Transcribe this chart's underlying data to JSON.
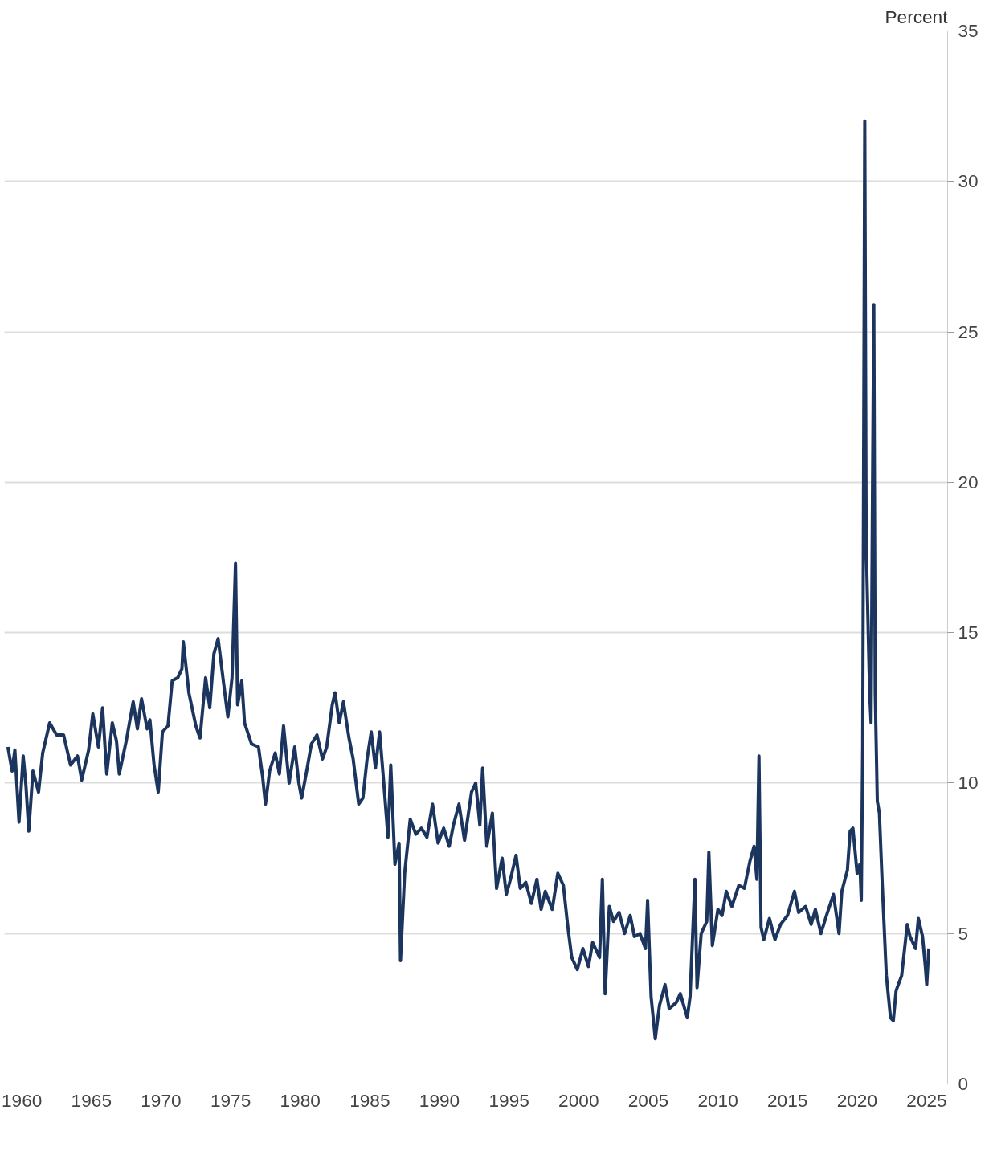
{
  "chart_data": {
    "type": "line",
    "ylabel": "Percent",
    "xlim": [
      1958.75,
      2026.5
    ],
    "ylim": [
      0,
      35
    ],
    "xticks": [
      1960,
      1965,
      1970,
      1975,
      1980,
      1985,
      1990,
      1995,
      2000,
      2005,
      2010,
      2015,
      2020,
      2025
    ],
    "yticks": [
      0,
      5,
      10,
      15,
      20,
      25,
      30,
      35
    ],
    "grid": "y",
    "x": [
      1959.0,
      1959.3,
      1959.5,
      1959.8,
      1960.1,
      1960.3,
      1960.5,
      1960.8,
      1961.2,
      1961.5,
      1962.0,
      1962.5,
      1963.0,
      1963.5,
      1964.0,
      1964.3,
      1964.8,
      1965.1,
      1965.5,
      1965.8,
      1966.1,
      1966.5,
      1966.8,
      1967.0,
      1967.5,
      1968.0,
      1968.3,
      1968.6,
      1969.0,
      1969.2,
      1969.5,
      1969.8,
      1970.1,
      1970.5,
      1970.8,
      1971.2,
      1971.5,
      1971.6,
      1972.0,
      1972.5,
      1972.8,
      1973.2,
      1973.5,
      1973.8,
      1974.1,
      1974.5,
      1974.8,
      1975.1,
      1975.35,
      1975.5,
      1975.8,
      1976.0,
      1976.5,
      1977.0,
      1977.3,
      1977.5,
      1977.8,
      1978.2,
      1978.5,
      1978.8,
      1979.2,
      1979.6,
      1979.9,
      1980.1,
      1980.5,
      1980.8,
      1981.2,
      1981.6,
      1981.9,
      1982.3,
      1982.5,
      1982.8,
      1983.1,
      1983.5,
      1983.8,
      1984.2,
      1984.5,
      1984.8,
      1985.1,
      1985.4,
      1985.7,
      1986.0,
      1986.3,
      1986.5,
      1986.8,
      1987.1,
      1987.2,
      1987.5,
      1987.9,
      1988.3,
      1988.7,
      1989.1,
      1989.5,
      1989.9,
      1990.3,
      1990.7,
      1991.0,
      1991.4,
      1991.8,
      1992.3,
      1992.6,
      1992.9,
      1993.1,
      1993.4,
      1993.8,
      1994.1,
      1994.5,
      1994.8,
      1995.1,
      1995.5,
      1995.8,
      1996.2,
      1996.6,
      1997.0,
      1997.3,
      1997.6,
      1998.1,
      1998.5,
      1998.9,
      1999.2,
      1999.5,
      1999.9,
      2000.3,
      2000.7,
      2001.0,
      2001.5,
      2001.7,
      2001.9,
      2002.2,
      2002.5,
      2002.9,
      2003.3,
      2003.7,
      2004.0,
      2004.4,
      2004.8,
      2004.95,
      2005.2,
      2005.5,
      2005.8,
      2006.2,
      2006.5,
      2007.0,
      2007.3,
      2007.8,
      2008.0,
      2008.35,
      2008.5,
      2008.8,
      2009.2,
      2009.35,
      2009.6,
      2010.0,
      2010.3,
      2010.6,
      2011.0,
      2011.5,
      2011.9,
      2012.3,
      2012.6,
      2012.8,
      2012.95,
      2013.1,
      2013.3,
      2013.7,
      2014.1,
      2014.5,
      2015.0,
      2015.5,
      2015.8,
      2016.3,
      2016.7,
      2017.0,
      2017.4,
      2017.8,
      2018.3,
      2018.7,
      2018.9,
      2019.3,
      2019.5,
      2019.7,
      2020.0,
      2020.2,
      2020.3,
      2020.4,
      2020.55,
      2020.65,
      2020.9,
      2021.0,
      2021.1,
      2021.2,
      2021.3,
      2021.45,
      2021.6,
      2021.8,
      2022.1,
      2022.4,
      2022.6,
      2022.8,
      2023.2,
      2023.6,
      2023.8,
      2024.2,
      2024.4,
      2024.7,
      2024.9,
      2025.0,
      2025.15
    ],
    "series": [
      {
        "color": "#1c355e",
        "values": [
          11.2,
          10.4,
          11.1,
          8.7,
          10.9,
          9.9,
          8.4,
          10.4,
          9.7,
          11.0,
          12.0,
          11.6,
          11.6,
          10.6,
          10.9,
          10.1,
          11.1,
          12.3,
          11.2,
          12.5,
          10.3,
          12.0,
          11.4,
          10.3,
          11.4,
          12.7,
          11.8,
          12.8,
          11.8,
          12.1,
          10.6,
          9.7,
          11.7,
          11.9,
          13.4,
          13.5,
          13.8,
          14.7,
          13.0,
          11.9,
          11.5,
          13.5,
          12.5,
          14.3,
          14.8,
          13.3,
          12.2,
          13.5,
          17.3,
          12.6,
          13.4,
          12.0,
          11.3,
          11.2,
          10.2,
          9.3,
          10.4,
          11.0,
          10.3,
          11.9,
          10.0,
          11.2,
          10.0,
          9.5,
          10.5,
          11.3,
          11.6,
          10.8,
          11.2,
          12.6,
          13.0,
          12.0,
          12.7,
          11.5,
          10.8,
          9.3,
          9.5,
          10.8,
          11.7,
          10.5,
          11.7,
          10.0,
          8.2,
          10.6,
          7.3,
          8.0,
          4.1,
          7.0,
          8.8,
          8.3,
          8.5,
          8.2,
          9.3,
          8.0,
          8.5,
          7.9,
          8.6,
          9.3,
          8.1,
          9.7,
          10.0,
          8.6,
          10.5,
          7.9,
          9.0,
          6.5,
          7.5,
          6.3,
          6.8,
          7.6,
          6.5,
          6.7,
          6.0,
          6.8,
          5.8,
          6.4,
          5.8,
          7.0,
          6.6,
          5.3,
          4.2,
          3.8,
          4.5,
          3.9,
          4.7,
          4.2,
          6.8,
          3.0,
          5.9,
          5.4,
          5.7,
          5.0,
          5.6,
          4.9,
          5.0,
          4.5,
          6.1,
          2.9,
          1.5,
          2.6,
          3.3,
          2.5,
          2.7,
          3.0,
          2.2,
          2.9,
          6.8,
          3.2,
          5.0,
          5.4,
          7.7,
          4.6,
          5.8,
          5.6,
          6.4,
          5.9,
          6.6,
          6.5,
          7.4,
          7.9,
          6.8,
          10.9,
          5.2,
          4.8,
          5.5,
          4.8,
          5.3,
          5.6,
          6.4,
          5.7,
          5.9,
          5.3,
          5.8,
          5.0,
          5.6,
          6.3,
          5.0,
          6.4,
          7.1,
          8.4,
          8.5,
          7.0,
          7.3,
          6.1,
          11.2,
          32.0,
          18.0,
          13.0,
          12.0,
          19.2,
          25.9,
          13.0,
          9.4,
          9.0,
          6.7,
          3.6,
          2.2,
          2.1,
          3.1,
          3.6,
          5.3,
          4.9,
          4.5,
          5.5,
          4.9,
          3.9,
          3.3,
          4.5
        ]
      }
    ]
  }
}
